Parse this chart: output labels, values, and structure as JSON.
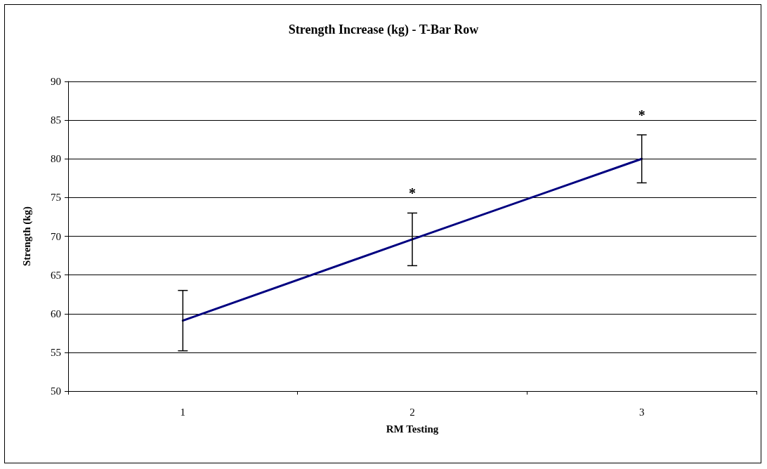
{
  "chart_data": {
    "type": "line",
    "title": "Strength Increase (kg) - T-Bar Row",
    "xlabel": "RM Testing",
    "ylabel": "Strength (kg)",
    "categories": [
      "1",
      "2",
      "3"
    ],
    "series": [
      {
        "color": "#000080",
        "values": [
          59.1,
          69.6,
          80.0
        ],
        "errors": [
          3.9,
          3.4,
          3.1
        ]
      }
    ],
    "ylim": [
      50,
      90
    ],
    "yticks": [
      50,
      55,
      60,
      65,
      70,
      75,
      80,
      85,
      90
    ],
    "annotations": [
      "*",
      "*"
    ],
    "grid": "y",
    "marker": "none",
    "line_style": "solid"
  }
}
